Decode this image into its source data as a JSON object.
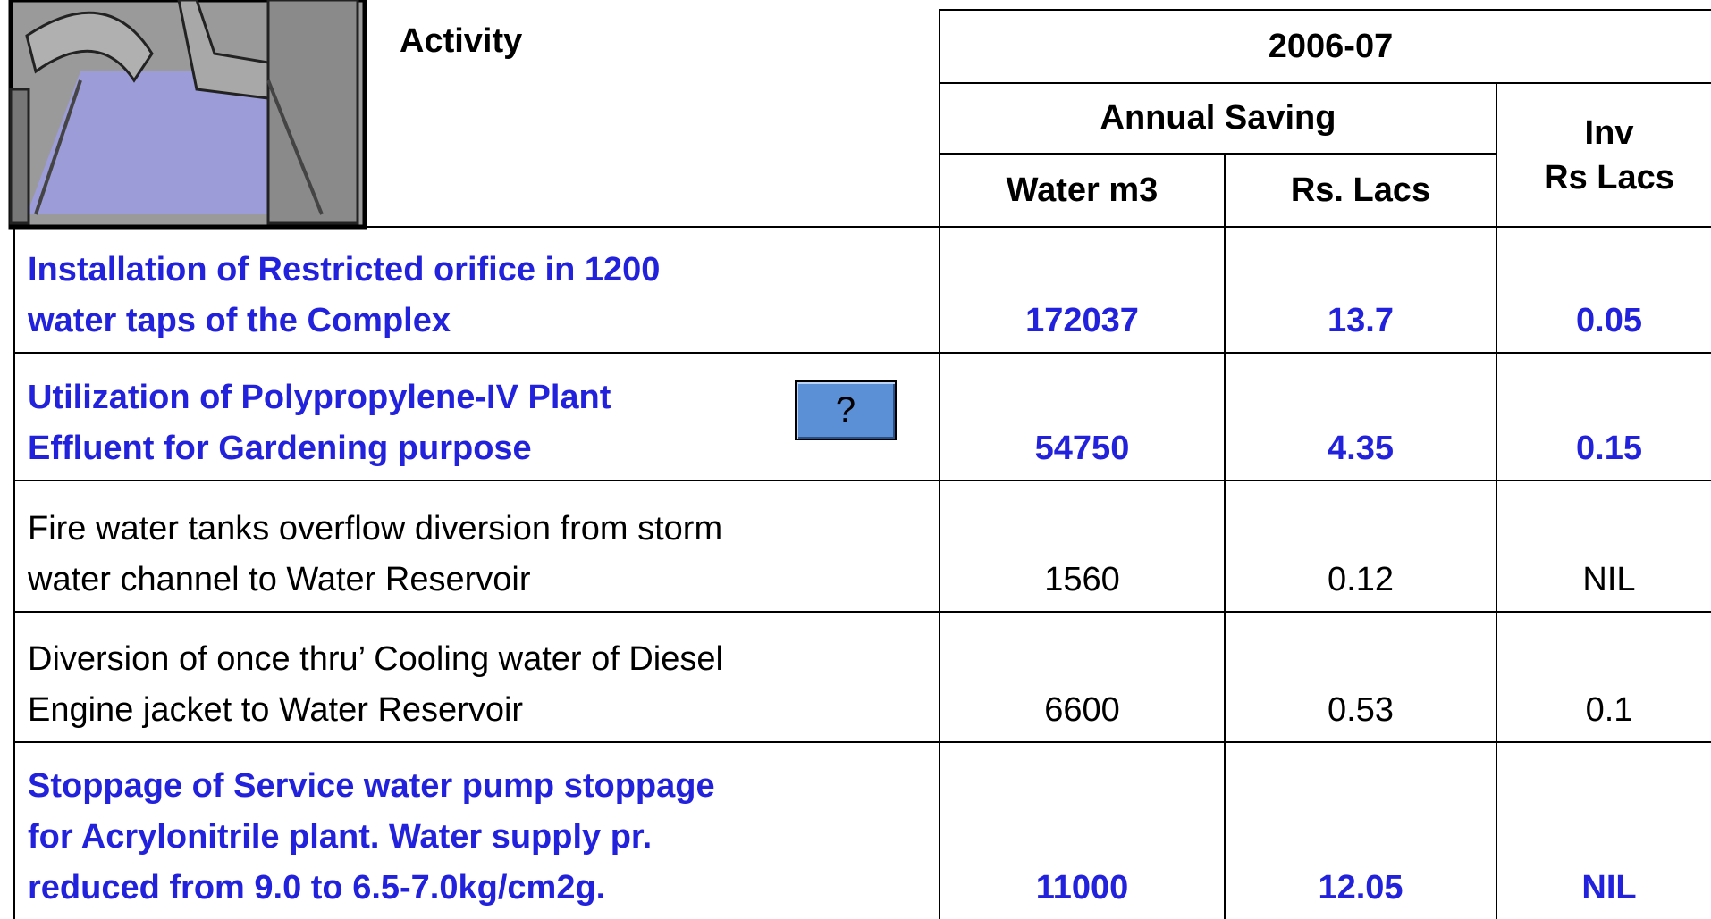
{
  "header": {
    "activity": "Activity",
    "period": "2006-07",
    "annual_saving": "Annual Saving",
    "water": "Water m3",
    "rs": "Rs. Lacs",
    "inv": [
      "Inv",
      "Rs Lacs"
    ]
  },
  "help_button": "?",
  "rows": [
    {
      "activity": [
        "Installation of Restricted orifice in 1200",
        "water taps of the Complex"
      ],
      "water": "172037",
      "saving": "13.7",
      "inv": "0.05",
      "highlight": true
    },
    {
      "activity": [
        "Utilization of Polypropylene-IV Plant",
        "Effluent for Gardening purpose"
      ],
      "water": "54750",
      "saving": "4.35",
      "inv": "0.15",
      "highlight": true
    },
    {
      "activity": [
        "Fire water tanks overflow diversion from storm",
        "water channel to Water Reservoir"
      ],
      "water": "1560",
      "saving": "0.12",
      "inv": "NIL",
      "highlight": false
    },
    {
      "activity": [
        "Diversion of once thru’ Cooling water of Diesel",
        "Engine jacket to Water Reservoir"
      ],
      "water": "6600",
      "saving": "0.53",
      "inv": "0.1",
      "highlight": false
    },
    {
      "activity": [
        "Stoppage of Service water pump stoppage",
        "for Acrylonitrile plant. Water supply pr.",
        "reduced from 9.0 to 6.5-7.0kg/cm2g."
      ],
      "water": "11000",
      "saving": "12.05",
      "inv": "NIL",
      "highlight": true
    }
  ]
}
